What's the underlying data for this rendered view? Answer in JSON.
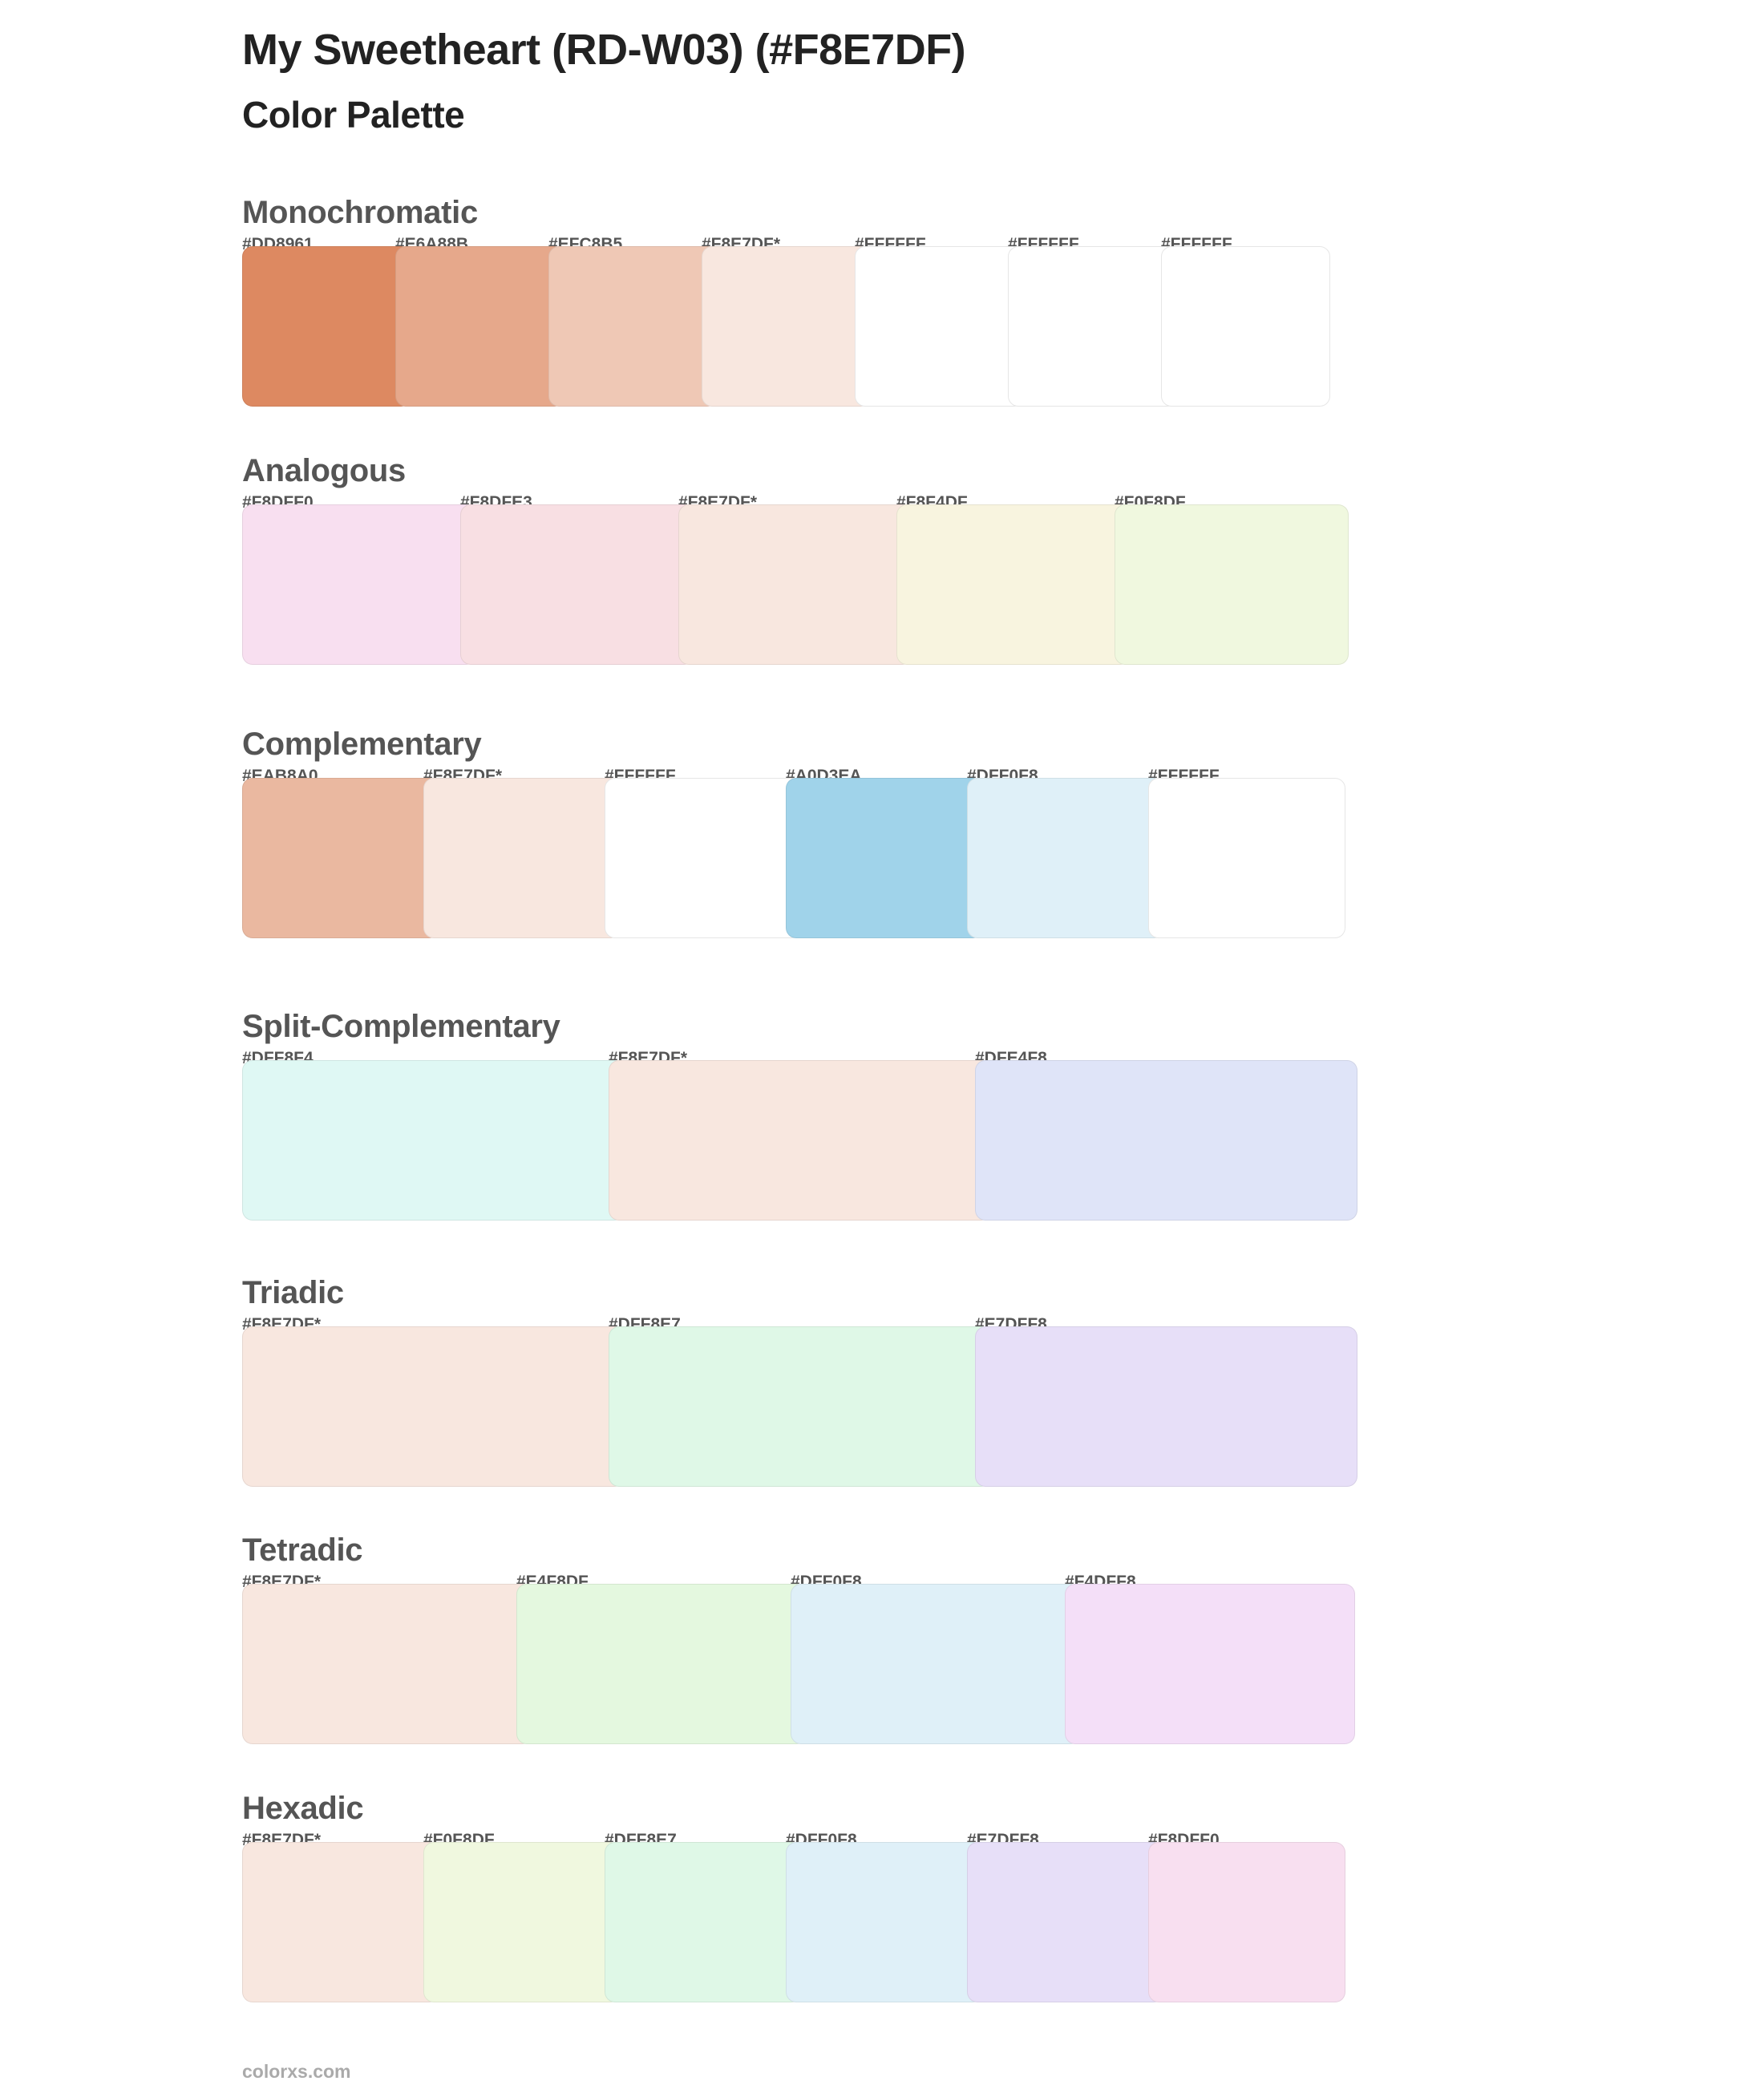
{
  "header": {
    "title": "My Sweetheart (RD-W03) (#F8E7DF)",
    "subtitle": "Color Palette"
  },
  "sections": [
    {
      "name": "Monochromatic",
      "colors": [
        {
          "label": "#DD8961",
          "hex": "#DD8961"
        },
        {
          "label": "#E6A88B",
          "hex": "#E6A88B"
        },
        {
          "label": "#EFC8B5",
          "hex": "#EFC8B5"
        },
        {
          "label": "#F8E7DF*",
          "hex": "#F8E7DF"
        },
        {
          "label": "#FFFFFF",
          "hex": "#FFFFFF"
        },
        {
          "label": "#FFFFFF",
          "hex": "#FFFFFF"
        },
        {
          "label": "#FFFFFF",
          "hex": "#FFFFFF"
        }
      ]
    },
    {
      "name": "Analogous",
      "colors": [
        {
          "label": "#F8DFF0",
          "hex": "#F8DFF0"
        },
        {
          "label": "#F8DFE3",
          "hex": "#F8DFE3"
        },
        {
          "label": "#F8E7DF*",
          "hex": "#F8E7DF"
        },
        {
          "label": "#F8F4DF",
          "hex": "#F8F4DF"
        },
        {
          "label": "#F0F8DF",
          "hex": "#F0F8DF"
        }
      ]
    },
    {
      "name": "Complementary",
      "colors": [
        {
          "label": "#EAB8A0",
          "hex": "#EAB8A0"
        },
        {
          "label": "#F8E7DF*",
          "hex": "#F8E7DF"
        },
        {
          "label": "#FFFFFF",
          "hex": "#FFFFFF"
        },
        {
          "label": "#A0D3EA",
          "hex": "#A0D3EA"
        },
        {
          "label": "#DFF0F8",
          "hex": "#DFF0F8"
        },
        {
          "label": "#FFFFFF",
          "hex": "#FFFFFF"
        }
      ]
    },
    {
      "name": "Split-Complementary",
      "colors": [
        {
          "label": "#DFF8F4",
          "hex": "#DFF8F4"
        },
        {
          "label": "#F8E7DF*",
          "hex": "#F8E7DF"
        },
        {
          "label": "#DFE4F8",
          "hex": "#DFE4F8"
        }
      ]
    },
    {
      "name": "Triadic",
      "colors": [
        {
          "label": "#F8E7DF*",
          "hex": "#F8E7DF"
        },
        {
          "label": "#DFF8E7",
          "hex": "#DFF8E7"
        },
        {
          "label": "#E7DFF8",
          "hex": "#E7DFF8"
        }
      ]
    },
    {
      "name": "Tetradic",
      "colors": [
        {
          "label": "#F8E7DF*",
          "hex": "#F8E7DF"
        },
        {
          "label": "#E4F8DF",
          "hex": "#E4F8DF"
        },
        {
          "label": "#DFF0F8",
          "hex": "#DFF0F8"
        },
        {
          "label": "#F4DFF8",
          "hex": "#F4DFF8"
        }
      ]
    },
    {
      "name": "Hexadic",
      "colors": [
        {
          "label": "#F8E7DF*",
          "hex": "#F8E7DF"
        },
        {
          "label": "#F0F8DF",
          "hex": "#F0F8DF"
        },
        {
          "label": "#DFF8E7",
          "hex": "#DFF8E7"
        },
        {
          "label": "#DFF0F8",
          "hex": "#DFF0F8"
        },
        {
          "label": "#E7DFF8",
          "hex": "#E7DFF8"
        },
        {
          "label": "#F8DFF0",
          "hex": "#F8DFF0"
        }
      ]
    }
  ],
  "footer": {
    "site": "colorxs.com"
  }
}
